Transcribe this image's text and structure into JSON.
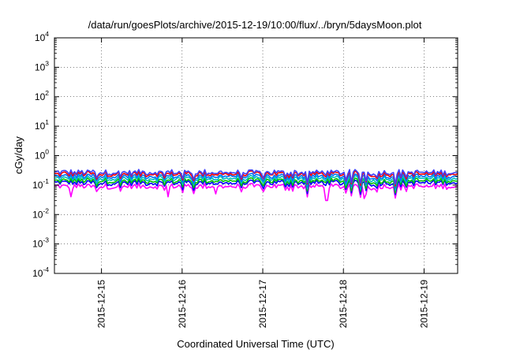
{
  "chart_data": {
    "type": "line",
    "title": "/data/run/goesPlots/archive/2015-12-19/10:00/flux/../bryn/5daysMoon.plot",
    "xlabel": "Coordinated Universal Time (UTC)",
    "ylabel": "cGy/day",
    "yscale": "log",
    "ylim": [
      0.0001,
      10000
    ],
    "y_ticks": [
      {
        "base": "10",
        "exp": "-4",
        "value": 0.0001
      },
      {
        "base": "10",
        "exp": "-3",
        "value": 0.001
      },
      {
        "base": "10",
        "exp": "-2",
        "value": 0.01
      },
      {
        "base": "10",
        "exp": "-1",
        "value": 0.1
      },
      {
        "base": "10",
        "exp": "0",
        "value": 1
      },
      {
        "base": "10",
        "exp": "1",
        "value": 10
      },
      {
        "base": "10",
        "exp": "2",
        "value": 100
      },
      {
        "base": "10",
        "exp": "3",
        "value": 1000
      },
      {
        "base": "10",
        "exp": "4",
        "value": 10000
      }
    ],
    "xlim": [
      "2015-12-14 10:00",
      "2015-12-19 10:00"
    ],
    "x_ticks": [
      "2015-12-15",
      "2015-12-16",
      "2015-12-17",
      "2015-12-18",
      "2015-12-19"
    ],
    "x_tick_values": [
      "2015-12-15 00:00",
      "2015-12-16 00:00",
      "2015-12-17 00:00",
      "2015-12-18 00:00",
      "2015-12-19 00:00"
    ],
    "grid": true,
    "legend": "none",
    "series": [
      {
        "color": "#ff00ff",
        "baseline": 0.09,
        "dips": [
          {
            "t": "2015-12-14 15:00",
            "v": 0.04
          },
          {
            "t": "2015-12-15 20:00",
            "v": 0.04
          },
          {
            "t": "2015-12-16 10:00",
            "v": 0.05
          },
          {
            "t": "2015-12-17 19:00",
            "v": 0.03
          },
          {
            "t": "2015-12-18 06:00",
            "v": 0.035
          }
        ]
      },
      {
        "color": "#0000ff",
        "baseline": 0.12,
        "dips": []
      },
      {
        "color": "#00c000",
        "baseline": 0.14,
        "dips": []
      },
      {
        "color": "#00c0c0",
        "baseline": 0.17,
        "dips": []
      },
      {
        "color": "#0070ff",
        "baseline": 0.2,
        "dips": []
      },
      {
        "color": "#ff0000",
        "baseline": 0.24,
        "dips": []
      },
      {
        "color": "#4040ff",
        "baseline": 0.27,
        "dips": []
      }
    ]
  }
}
